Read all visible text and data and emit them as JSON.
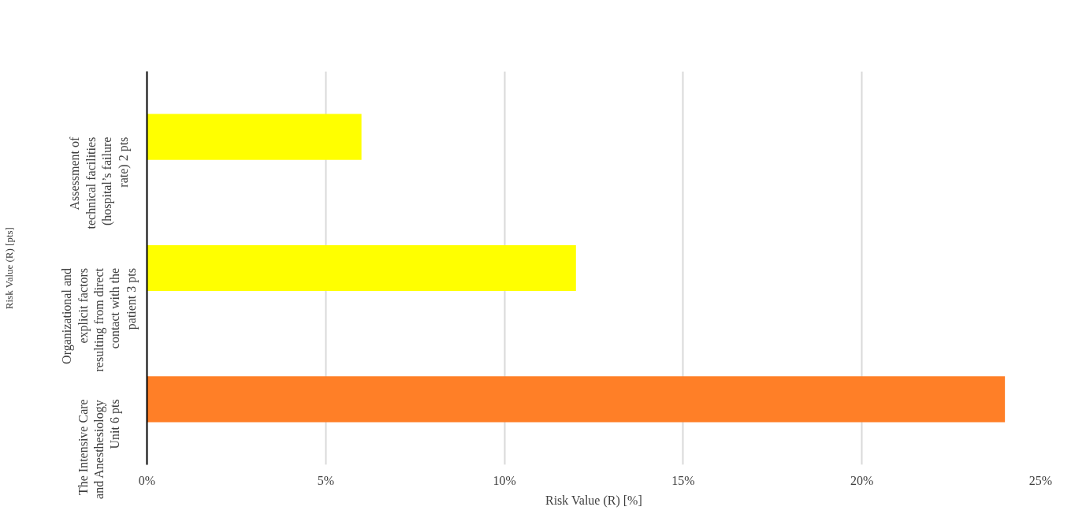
{
  "chart_data": {
    "type": "bar",
    "orientation": "horizontal",
    "xlabel": "Risk Value (R) [%]",
    "ylabel": "Risk Value (R) [pts]",
    "categories": [
      "Assessment of technical facilities (hospital’s failure rate) 2 pts",
      "Organizational and explicit factors resulting from direct contact with the patient 3 pts",
      "The Intensive Care and Anesthesiology Unit 6 pts"
    ],
    "values": [
      6,
      12,
      24
    ],
    "colors": [
      "#ffff00",
      "#ffff00",
      "#ff7f27"
    ],
    "xlim": [
      0,
      25
    ],
    "xticks": [
      {
        "value": 0,
        "label": "0%"
      },
      {
        "value": 5,
        "label": "5%"
      },
      {
        "value": 10,
        "label": "10%"
      },
      {
        "value": 15,
        "label": "15%"
      },
      {
        "value": 20,
        "label": "20%"
      },
      {
        "value": 25,
        "label": "25%"
      }
    ],
    "grid": "x"
  }
}
